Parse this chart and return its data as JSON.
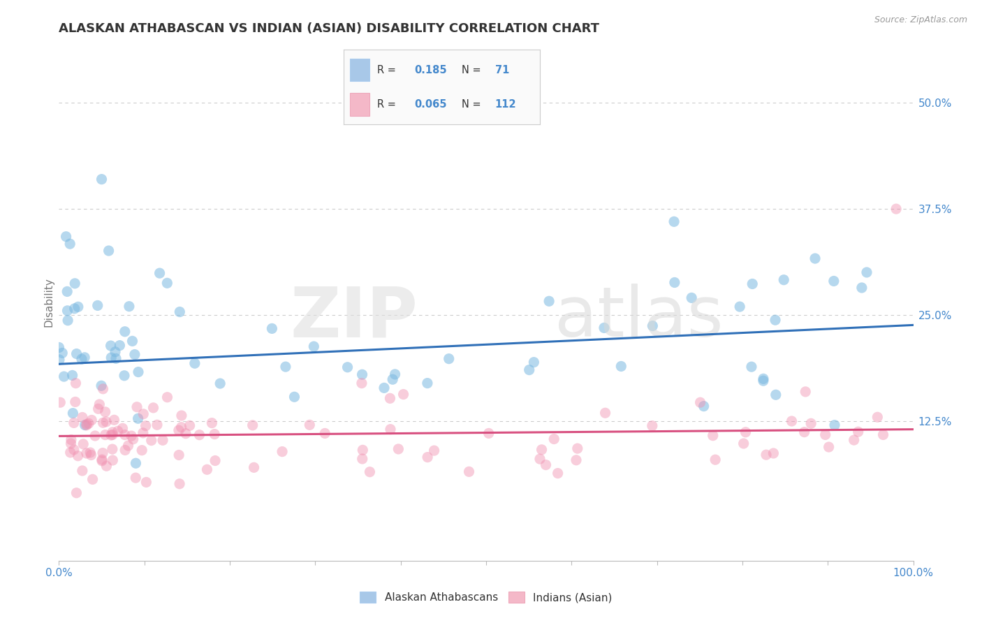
{
  "title": "ALASKAN ATHABASCAN VS INDIAN (ASIAN) DISABILITY CORRELATION CHART",
  "source": "Source: ZipAtlas.com",
  "ylabel": "Disability",
  "yticks_labels": [
    "12.5%",
    "25.0%",
    "37.5%",
    "50.0%"
  ],
  "ytick_values": [
    0.125,
    0.25,
    0.375,
    0.5
  ],
  "legend_labels": [
    "Alaskan Athabascans",
    "Indians (Asian)"
  ],
  "blue_patch_color": "#a8c8e8",
  "pink_patch_color": "#f4b8c8",
  "blue_dot_color": "#7ab8e0",
  "pink_dot_color": "#f090b0",
  "blue_line_color": "#3070b8",
  "pink_line_color": "#d85080",
  "R1": "0.185",
  "N1": "71",
  "R2": "0.065",
  "N2": "112",
  "watermark_zip": "ZIP",
  "watermark_atlas": "atlas",
  "blue_line_x0": 0.0,
  "blue_line_x1": 1.0,
  "blue_line_y0": 0.192,
  "blue_line_y1": 0.238,
  "pink_line_x0": 0.0,
  "pink_line_x1": 1.0,
  "pink_line_y0": 0.107,
  "pink_line_y1": 0.115,
  "xlim": [
    0.0,
    1.0
  ],
  "ylim": [
    -0.04,
    0.57
  ],
  "background_color": "#ffffff",
  "grid_color": "#cccccc",
  "title_color": "#333333",
  "label_color": "#4488cc",
  "tick_label_color": "#4488cc",
  "source_color": "#999999"
}
